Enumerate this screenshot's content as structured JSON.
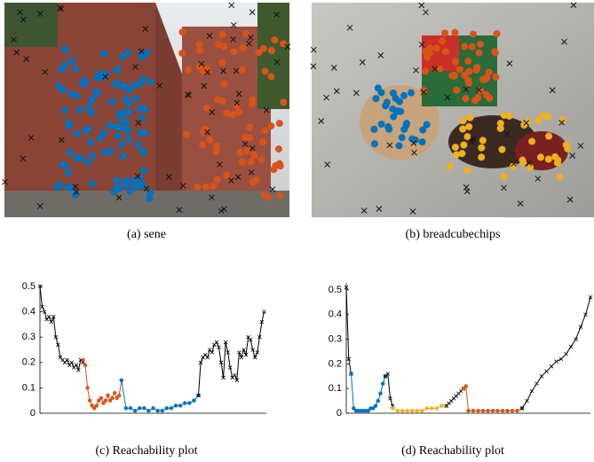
{
  "figures": [
    {
      "caption": "(a)  sene"
    },
    {
      "caption": "(b)  breadcubechips"
    }
  ],
  "chart_data": [
    {
      "type": "line",
      "caption": "(c)  Reachability plot",
      "xlim": [
        0,
        100
      ],
      "ylim": [
        0,
        0.5
      ],
      "yticks": [
        0,
        0.1,
        0.2,
        0.3,
        0.4,
        0.5
      ],
      "series": [
        {
          "color": "#000000",
          "marker": "x",
          "x": [
            0,
            1,
            2,
            3,
            4,
            5,
            6,
            7,
            8,
            9,
            10,
            11,
            12,
            13,
            14,
            15,
            16,
            17,
            18,
            19
          ],
          "values": [
            0.5,
            0.42,
            0.4,
            0.37,
            0.38,
            0.36,
            0.38,
            0.3,
            0.27,
            0.22,
            0.21,
            0.2,
            0.21,
            0.19,
            0.2,
            0.18,
            0.19,
            0.17,
            0.21,
            0.2
          ]
        },
        {
          "color": "#d95319",
          "marker": "o",
          "x": [
            19,
            20,
            21,
            22,
            23,
            24,
            25,
            26,
            27,
            28,
            29,
            30,
            31,
            32,
            33,
            34,
            35,
            36
          ],
          "values": [
            0.21,
            0.19,
            0.1,
            0.05,
            0.03,
            0.02,
            0.03,
            0.05,
            0.06,
            0.04,
            0.05,
            0.07,
            0.05,
            0.06,
            0.08,
            0.06,
            0.07,
            0.13
          ]
        },
        {
          "color": "#0072bd",
          "marker": "o",
          "x": [
            36,
            38,
            40,
            42,
            44,
            46,
            48,
            50,
            52,
            54,
            56,
            58,
            60,
            62,
            64,
            66,
            68,
            70
          ],
          "values": [
            0.13,
            0.02,
            0.02,
            0.01,
            0.02,
            0.02,
            0.01,
            0.02,
            0.01,
            0.01,
            0.02,
            0.02,
            0.03,
            0.03,
            0.04,
            0.04,
            0.05,
            0.07
          ]
        },
        {
          "color": "#000000",
          "marker": "x",
          "x": [
            70,
            71,
            72,
            73,
            74,
            75,
            76,
            77,
            78,
            79,
            80,
            81,
            82,
            83,
            84,
            85,
            86,
            87,
            88,
            89,
            90,
            91,
            92,
            93,
            94,
            95,
            96,
            97,
            98,
            99
          ],
          "values": [
            0.07,
            0.2,
            0.22,
            0.23,
            0.22,
            0.25,
            0.24,
            0.27,
            0.28,
            0.26,
            0.2,
            0.14,
            0.28,
            0.24,
            0.18,
            0.14,
            0.15,
            0.13,
            0.24,
            0.22,
            0.25,
            0.23,
            0.3,
            0.29,
            0.25,
            0.22,
            0.24,
            0.3,
            0.36,
            0.4
          ]
        }
      ]
    },
    {
      "type": "line",
      "caption": "(d)  Reachability plot",
      "xlim": [
        0,
        100
      ],
      "ylim": [
        0,
        0.52
      ],
      "yticks": [
        0,
        0.1,
        0.2,
        0.3,
        0.4,
        0.5
      ],
      "series": [
        {
          "color": "#000000",
          "marker": "x",
          "x": [
            0,
            1,
            2
          ],
          "values": [
            0.51,
            0.22,
            0.16
          ]
        },
        {
          "color": "#0072bd",
          "marker": "o",
          "x": [
            2,
            3,
            4,
            5,
            6,
            7,
            8,
            9,
            10,
            11,
            12,
            13,
            14,
            15,
            16
          ],
          "values": [
            0.16,
            0.02,
            0.01,
            0.01,
            0.01,
            0.01,
            0.01,
            0.01,
            0.02,
            0.02,
            0.03,
            0.05,
            0.08,
            0.12,
            0.15
          ]
        },
        {
          "color": "#000000",
          "marker": "x",
          "x": [
            16,
            17,
            18,
            19
          ],
          "values": [
            0.15,
            0.16,
            0.06,
            0.03
          ]
        },
        {
          "color": "#edb120",
          "marker": "o",
          "x": [
            19,
            21,
            23,
            25,
            27,
            29,
            31,
            33,
            35,
            37,
            39,
            41
          ],
          "values": [
            0.02,
            0.01,
            0.01,
            0.01,
            0.01,
            0.01,
            0.01,
            0.02,
            0.02,
            0.02,
            0.03,
            0.03
          ]
        },
        {
          "color": "#000000",
          "marker": "x",
          "x": [
            41,
            42,
            43,
            44,
            45,
            46,
            47,
            48
          ],
          "values": [
            0.03,
            0.04,
            0.05,
            0.06,
            0.07,
            0.08,
            0.09,
            0.1
          ]
        },
        {
          "color": "#d95319",
          "marker": "o",
          "x": [
            48,
            49,
            50,
            52,
            54,
            56,
            58,
            60,
            62,
            64,
            66,
            68,
            70,
            72
          ],
          "values": [
            0.1,
            0.11,
            0.01,
            0.01,
            0.01,
            0.01,
            0.01,
            0.01,
            0.01,
            0.01,
            0.01,
            0.01,
            0.01,
            0.02
          ]
        },
        {
          "color": "#000000",
          "marker": "x",
          "x": [
            72,
            74,
            76,
            78,
            80,
            82,
            84,
            86,
            88,
            90,
            92,
            94,
            96,
            98,
            100
          ],
          "values": [
            0.02,
            0.05,
            0.09,
            0.12,
            0.15,
            0.17,
            0.19,
            0.21,
            0.22,
            0.24,
            0.27,
            0.3,
            0.35,
            0.4,
            0.47
          ]
        }
      ]
    }
  ]
}
